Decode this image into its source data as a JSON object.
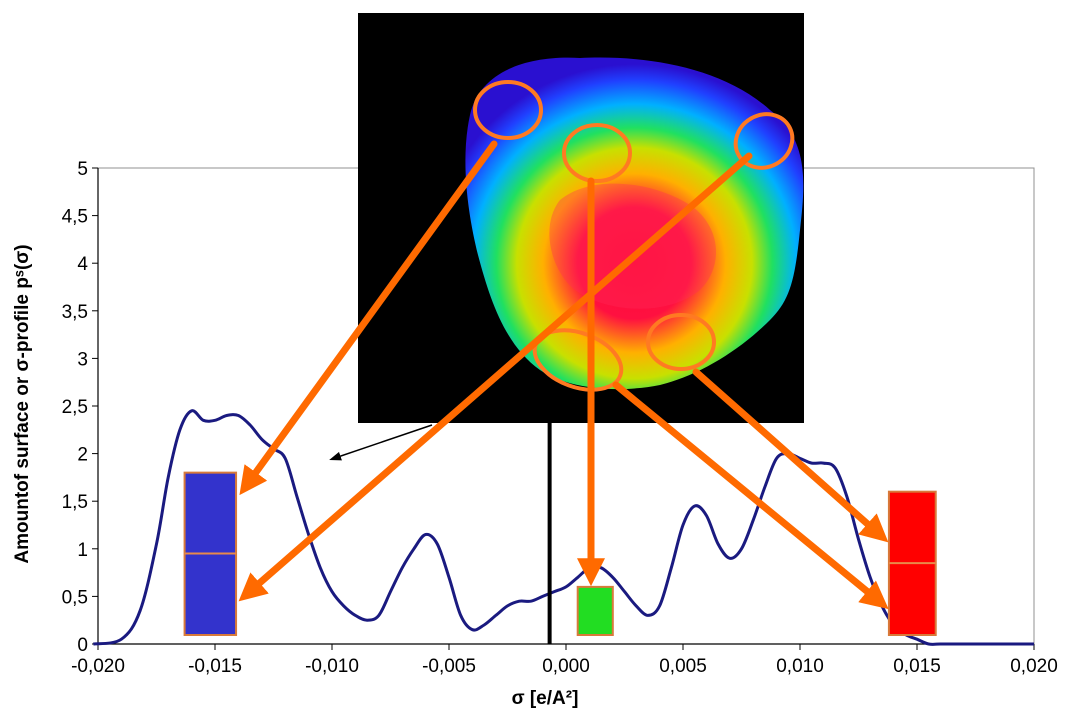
{
  "chart_data": {
    "type": "line",
    "title": "",
    "xlabel": "σ [e/A²]",
    "ylabel": "Amountof  surface  or σ-profile pˢ(σ)",
    "xlim": [
      -0.02,
      0.02
    ],
    "ylim": [
      0,
      5
    ],
    "x_ticks": [
      -0.02,
      -0.015,
      -0.01,
      -0.005,
      0.0,
      0.005,
      0.01,
      0.015,
      0.02
    ],
    "x_tick_labels": [
      "-0,020",
      "-0,015",
      "-0,010",
      "-0,005",
      "0,000",
      "0,005",
      "0,010",
      "0,015",
      "0,020"
    ],
    "y_ticks": [
      0,
      0.5,
      1,
      1.5,
      2,
      2.5,
      3,
      3.5,
      4,
      4.5,
      5
    ],
    "y_tick_labels": [
      "0",
      "0,5",
      "1",
      "1,5",
      "2",
      "2,5",
      "3",
      "3,5",
      "4",
      "4,5",
      "5"
    ],
    "grid": false,
    "legend": "none",
    "series": [
      {
        "color": "#1a1a80",
        "x": [
          -0.0202,
          -0.019,
          -0.0182,
          -0.0175,
          -0.017,
          -0.0165,
          -0.016,
          -0.0155,
          -0.015,
          -0.0145,
          -0.014,
          -0.0135,
          -0.013,
          -0.0125,
          -0.012,
          -0.0115,
          -0.011,
          -0.0105,
          -0.01,
          -0.0095,
          -0.009,
          -0.0085,
          -0.008,
          -0.0075,
          -0.007,
          -0.0065,
          -0.006,
          -0.0055,
          -0.005,
          -0.0045,
          -0.004,
          -0.0035,
          -0.003,
          -0.0025,
          -0.002,
          -0.0015,
          -0.001,
          -0.0005,
          0.0,
          0.0005,
          0.001,
          0.0015,
          0.002,
          0.0025,
          0.003,
          0.0035,
          0.004,
          0.0045,
          0.005,
          0.0055,
          0.006,
          0.0065,
          0.007,
          0.0075,
          0.008,
          0.0085,
          0.009,
          0.0095,
          0.01,
          0.0105,
          0.011,
          0.0115,
          0.012,
          0.0125,
          0.013,
          0.0135,
          0.014,
          0.0145,
          0.015,
          0.0155,
          0.016,
          0.0165,
          0.017,
          0.0175,
          0.018,
          0.0185,
          0.019,
          0.0195,
          0.02
        ],
        "y": [
          0.0,
          0.05,
          0.35,
          1.05,
          1.75,
          2.25,
          2.45,
          2.35,
          2.35,
          2.4,
          2.4,
          2.3,
          2.15,
          2.05,
          1.95,
          1.55,
          1.15,
          0.8,
          0.55,
          0.4,
          0.3,
          0.25,
          0.3,
          0.55,
          0.8,
          1.0,
          1.15,
          1.05,
          0.7,
          0.3,
          0.15,
          0.2,
          0.3,
          0.4,
          0.45,
          0.45,
          0.5,
          0.55,
          0.6,
          0.7,
          0.8,
          0.8,
          0.7,
          0.55,
          0.4,
          0.3,
          0.4,
          0.8,
          1.25,
          1.45,
          1.35,
          1.05,
          0.9,
          1.0,
          1.3,
          1.65,
          1.95,
          2.0,
          1.95,
          1.9,
          1.9,
          1.85,
          1.55,
          1.1,
          0.7,
          0.4,
          0.2,
          0.1,
          0.05,
          0.0,
          0.0,
          0.0,
          0.0,
          0.0,
          0.0,
          0.0,
          0.0,
          0.0,
          0.0
        ]
      }
    ],
    "annotations": {
      "colored_bars": [
        {
          "label": "blue",
          "x_from": -0.0163,
          "x_to": -0.0141,
          "y_top": 1.8,
          "y_mid": 0.95,
          "fill": "#3333cc"
        },
        {
          "label": "green",
          "x_from": 0.0005,
          "x_to": 0.002,
          "y_top": 0.6,
          "fill": "#22dd22"
        },
        {
          "label": "red",
          "x_from": 0.0138,
          "x_to": 0.0158,
          "y_top": 1.6,
          "y_mid": 0.85,
          "fill": "#ff0000"
        }
      ],
      "vertical_marker_x": -0.0007,
      "arrow_color": "#ff6a00",
      "ellipse_color": "#ff7a22"
    }
  }
}
